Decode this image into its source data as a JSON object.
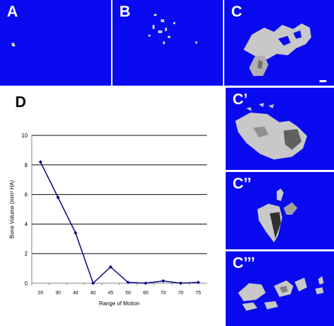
{
  "panels": {
    "a": {
      "label": "A"
    },
    "b": {
      "label": "B"
    },
    "c": {
      "label": "C"
    },
    "c1": {
      "label": "C’"
    },
    "c2": {
      "label": "C’’"
    },
    "c3": {
      "label": "C’’’"
    },
    "d": {
      "label": "D"
    }
  },
  "colors": {
    "panel_bg": "#0a0af0",
    "specimen": "#c8c8c8",
    "line": "#000080"
  },
  "chart_data": {
    "type": "line",
    "categories": [
      "20",
      "30",
      "40",
      "40",
      "45",
      "50",
      "60",
      "70",
      "70",
      "75"
    ],
    "values": [
      8.2,
      5.8,
      3.4,
      0.0,
      1.1,
      0.05,
      0.0,
      0.15,
      0.0,
      0.05
    ],
    "xlabel": "Range of Motion",
    "ylabel": "Bone Volume (mm³ HA)",
    "ylim": [
      0,
      10
    ],
    "yticks": [
      "0",
      "2",
      "4",
      "6",
      "8",
      "10"
    ],
    "grid": true,
    "legend": "none",
    "marker": "diamond"
  }
}
